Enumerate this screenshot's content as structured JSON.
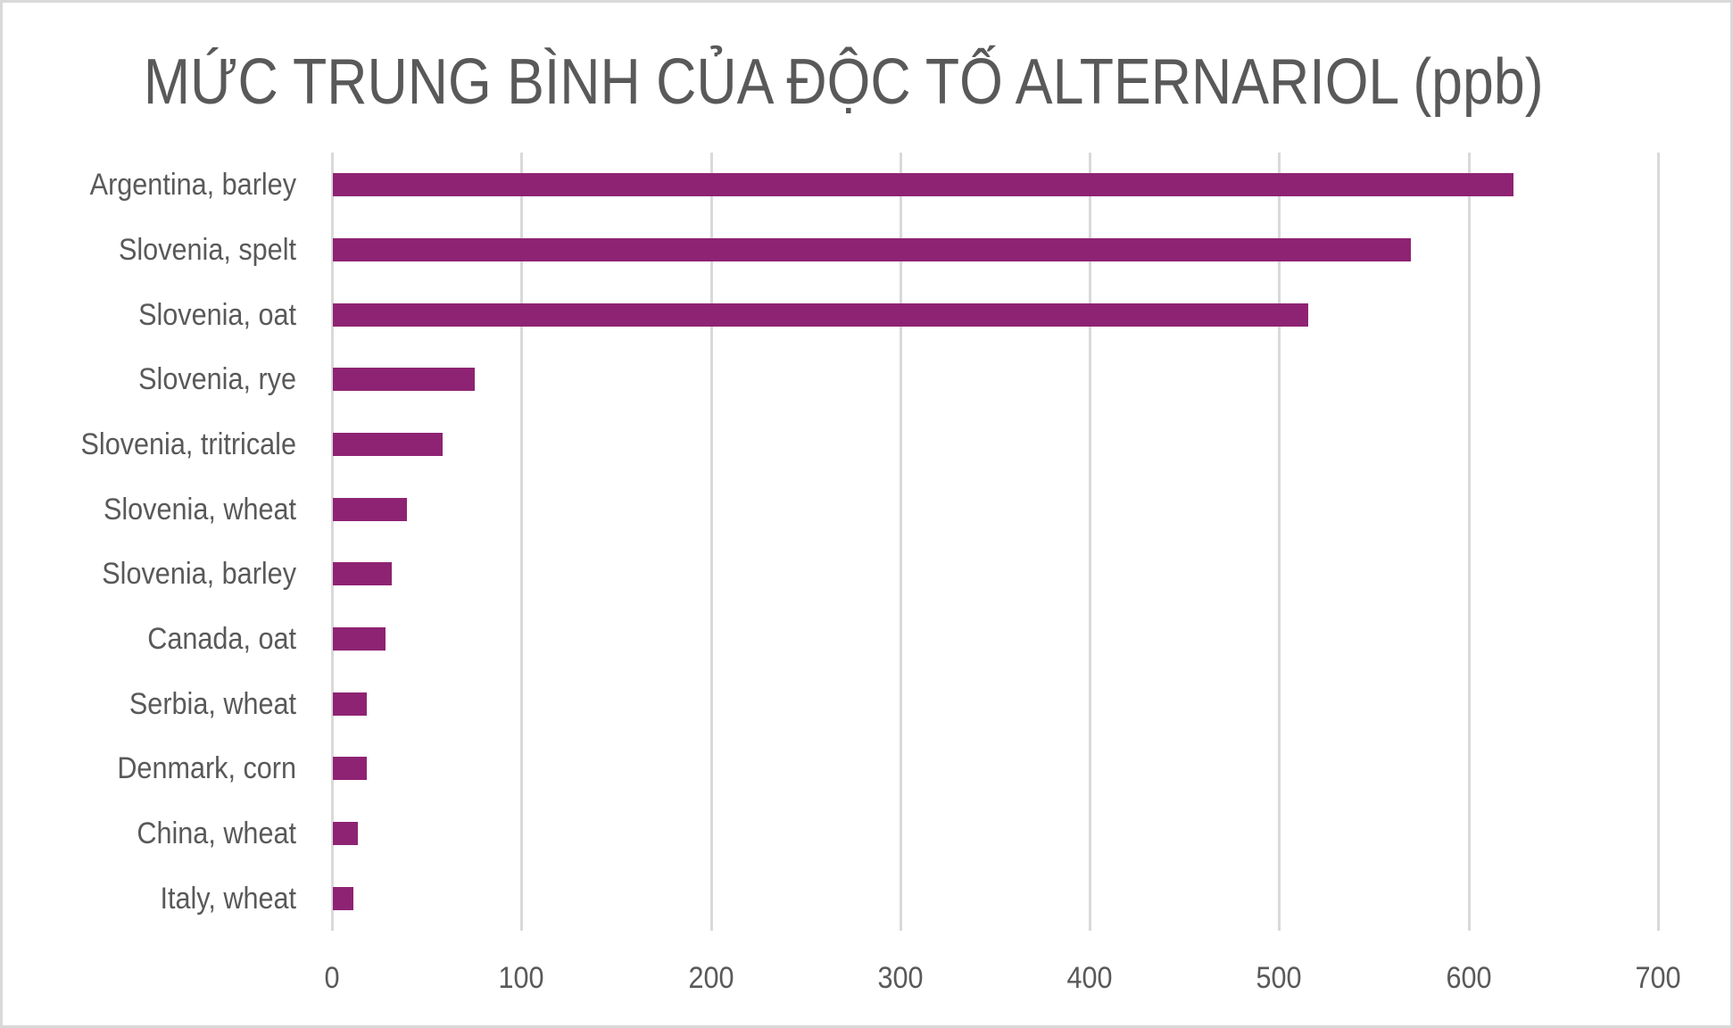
{
  "chart_data": {
    "type": "bar",
    "orientation": "horizontal",
    "title": "MỨC TRUNG BÌNH CỦA ĐỘC TỐ ALTERNARIOL (ppb)",
    "xlabel": "",
    "ylabel": "",
    "categories": [
      "Argentina, barley",
      "Slovenia, spelt",
      "Slovenia, oat",
      "Slovenia, rye",
      "Slovenia, tritricale",
      "Slovenia, wheat",
      "Slovenia, barley",
      "Canada, oat",
      "Serbia, wheat",
      "Denmark, corn",
      "China, wheat",
      "Italy, wheat"
    ],
    "values": [
      623,
      569,
      515,
      75,
      58,
      39,
      31,
      28,
      18,
      18,
      13,
      11
    ],
    "xlim": [
      0,
      700
    ],
    "x_ticks": [
      "0",
      "100",
      "200",
      "300",
      "400",
      "500",
      "600",
      "700"
    ],
    "grid": "vertical",
    "legend": "none",
    "bar_color": "#8e2373",
    "gridline_color": "#d9d9d9",
    "text_color": "#595959"
  }
}
